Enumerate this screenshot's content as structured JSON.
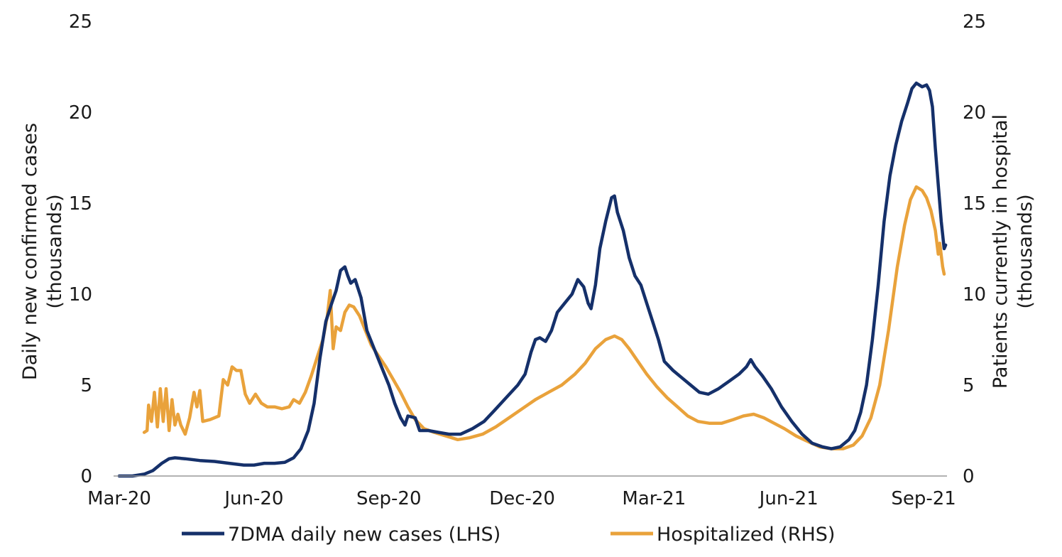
{
  "chart_data": {
    "type": "line",
    "title": "",
    "x_ticks": [
      "Mar-20",
      "Jun-20",
      "Sep-20",
      "Dec-20",
      "Mar-21",
      "Jun-21",
      "Sep-21"
    ],
    "xlim": [
      "2020-03-01",
      "2021-09-15"
    ],
    "left_axis": {
      "label_line1": "Daily new confirmed cases",
      "label_line2": "(thousands)",
      "ylim": [
        0,
        25
      ],
      "ticks": [
        "0",
        "5",
        "10",
        "15",
        "20",
        "25"
      ]
    },
    "right_axis": {
      "label_line1": "Patients currently in hospital",
      "label_line2": "(thousands)",
      "ylim": [
        0,
        25
      ],
      "ticks": [
        "0",
        "5",
        "10",
        "15",
        "20",
        "25"
      ]
    },
    "grid": false,
    "legend_position": "bottom",
    "series": [
      {
        "name": "7DMA daily new cases (LHS)",
        "axis": "left",
        "color": "#15306a",
        "points": [
          [
            "2020-03-01",
            0.0
          ],
          [
            "2020-03-10",
            0.0
          ],
          [
            "2020-03-18",
            0.1
          ],
          [
            "2020-03-24",
            0.3
          ],
          [
            "2020-03-30",
            0.7
          ],
          [
            "2020-04-04",
            0.95
          ],
          [
            "2020-04-08",
            1.0
          ],
          [
            "2020-04-15",
            0.95
          ],
          [
            "2020-04-25",
            0.85
          ],
          [
            "2020-05-05",
            0.8
          ],
          [
            "2020-05-15",
            0.7
          ],
          [
            "2020-05-25",
            0.6
          ],
          [
            "2020-06-01",
            0.6
          ],
          [
            "2020-06-08",
            0.7
          ],
          [
            "2020-06-15",
            0.7
          ],
          [
            "2020-06-22",
            0.75
          ],
          [
            "2020-06-28",
            1.0
          ],
          [
            "2020-07-03",
            1.5
          ],
          [
            "2020-07-08",
            2.5
          ],
          [
            "2020-07-12",
            4.0
          ],
          [
            "2020-07-16",
            6.5
          ],
          [
            "2020-07-20",
            8.5
          ],
          [
            "2020-07-24",
            9.5
          ],
          [
            "2020-07-27",
            10.2
          ],
          [
            "2020-07-30",
            11.3
          ],
          [
            "2020-08-02",
            11.5
          ],
          [
            "2020-08-04",
            11.0
          ],
          [
            "2020-08-06",
            10.6
          ],
          [
            "2020-08-09",
            10.8
          ],
          [
            "2020-08-13",
            9.8
          ],
          [
            "2020-08-17",
            8.0
          ],
          [
            "2020-08-22",
            7.0
          ],
          [
            "2020-08-27",
            6.0
          ],
          [
            "2020-09-01",
            5.0
          ],
          [
            "2020-09-05",
            4.0
          ],
          [
            "2020-09-09",
            3.2
          ],
          [
            "2020-09-12",
            2.8
          ],
          [
            "2020-09-14",
            3.3
          ],
          [
            "2020-09-19",
            3.2
          ],
          [
            "2020-09-22",
            2.5
          ],
          [
            "2020-09-28",
            2.5
          ],
          [
            "2020-10-05",
            2.4
          ],
          [
            "2020-10-12",
            2.3
          ],
          [
            "2020-10-20",
            2.3
          ],
          [
            "2020-10-28",
            2.6
          ],
          [
            "2020-11-05",
            3.0
          ],
          [
            "2020-11-12",
            3.6
          ],
          [
            "2020-11-20",
            4.3
          ],
          [
            "2020-11-28",
            5.0
          ],
          [
            "2020-12-03",
            5.6
          ],
          [
            "2020-12-07",
            6.8
          ],
          [
            "2020-12-10",
            7.5
          ],
          [
            "2020-12-13",
            7.6
          ],
          [
            "2020-12-17",
            7.4
          ],
          [
            "2020-12-21",
            8.0
          ],
          [
            "2020-12-25",
            9.0
          ],
          [
            "2020-12-30",
            9.5
          ],
          [
            "2021-01-04",
            10.0
          ],
          [
            "2021-01-08",
            10.8
          ],
          [
            "2021-01-12",
            10.4
          ],
          [
            "2021-01-15",
            9.5
          ],
          [
            "2021-01-17",
            9.2
          ],
          [
            "2021-01-20",
            10.5
          ],
          [
            "2021-01-23",
            12.5
          ],
          [
            "2021-01-27",
            14.0
          ],
          [
            "2021-01-31",
            15.3
          ],
          [
            "2021-02-02",
            15.4
          ],
          [
            "2021-02-04",
            14.5
          ],
          [
            "2021-02-08",
            13.5
          ],
          [
            "2021-02-12",
            12.0
          ],
          [
            "2021-02-16",
            11.0
          ],
          [
            "2021-02-20",
            10.5
          ],
          [
            "2021-02-24",
            9.5
          ],
          [
            "2021-02-28",
            8.5
          ],
          [
            "2021-03-04",
            7.5
          ],
          [
            "2021-03-08",
            6.3
          ],
          [
            "2021-03-14",
            5.8
          ],
          [
            "2021-03-20",
            5.4
          ],
          [
            "2021-03-26",
            5.0
          ],
          [
            "2021-04-01",
            4.6
          ],
          [
            "2021-04-07",
            4.5
          ],
          [
            "2021-04-14",
            4.8
          ],
          [
            "2021-04-21",
            5.2
          ],
          [
            "2021-04-28",
            5.6
          ],
          [
            "2021-05-03",
            6.0
          ],
          [
            "2021-05-06",
            6.4
          ],
          [
            "2021-05-09",
            6.0
          ],
          [
            "2021-05-14",
            5.5
          ],
          [
            "2021-05-20",
            4.8
          ],
          [
            "2021-05-27",
            3.8
          ],
          [
            "2021-06-03",
            3.0
          ],
          [
            "2021-06-10",
            2.3
          ],
          [
            "2021-06-17",
            1.8
          ],
          [
            "2021-06-24",
            1.6
          ],
          [
            "2021-06-30",
            1.5
          ],
          [
            "2021-07-06",
            1.6
          ],
          [
            "2021-07-12",
            2.0
          ],
          [
            "2021-07-16",
            2.5
          ],
          [
            "2021-07-20",
            3.5
          ],
          [
            "2021-07-24",
            5.0
          ],
          [
            "2021-07-28",
            7.5
          ],
          [
            "2021-08-01",
            10.5
          ],
          [
            "2021-08-05",
            14.0
          ],
          [
            "2021-08-09",
            16.5
          ],
          [
            "2021-08-13",
            18.2
          ],
          [
            "2021-08-17",
            19.5
          ],
          [
            "2021-08-21",
            20.5
          ],
          [
            "2021-08-24",
            21.3
          ],
          [
            "2021-08-27",
            21.6
          ],
          [
            "2021-08-31",
            21.4
          ],
          [
            "2021-09-03",
            21.5
          ],
          [
            "2021-09-05",
            21.2
          ],
          [
            "2021-09-07",
            20.3
          ],
          [
            "2021-09-09",
            18.0
          ],
          [
            "2021-09-11",
            16.0
          ],
          [
            "2021-09-13",
            14.0
          ],
          [
            "2021-09-15",
            12.5
          ],
          [
            "2021-09-16",
            12.7
          ]
        ]
      },
      {
        "name": "Hospitalized (RHS)",
        "axis": "right",
        "color": "#e9a23b",
        "points": [
          [
            "2020-03-18",
            2.4
          ],
          [
            "2020-03-20",
            2.5
          ],
          [
            "2020-03-21",
            3.9
          ],
          [
            "2020-03-23",
            3.0
          ],
          [
            "2020-03-25",
            4.6
          ],
          [
            "2020-03-27",
            2.7
          ],
          [
            "2020-03-29",
            4.8
          ],
          [
            "2020-03-31",
            3.0
          ],
          [
            "2020-04-02",
            4.8
          ],
          [
            "2020-04-04",
            2.5
          ],
          [
            "2020-04-06",
            4.2
          ],
          [
            "2020-04-08",
            2.8
          ],
          [
            "2020-04-10",
            3.4
          ],
          [
            "2020-04-12",
            2.8
          ],
          [
            "2020-04-15",
            2.3
          ],
          [
            "2020-04-18",
            3.2
          ],
          [
            "2020-04-21",
            4.6
          ],
          [
            "2020-04-23",
            3.8
          ],
          [
            "2020-04-25",
            4.7
          ],
          [
            "2020-04-27",
            3.0
          ],
          [
            "2020-05-02",
            3.1
          ],
          [
            "2020-05-08",
            3.3
          ],
          [
            "2020-05-11",
            5.3
          ],
          [
            "2020-05-14",
            5.0
          ],
          [
            "2020-05-17",
            6.0
          ],
          [
            "2020-05-20",
            5.8
          ],
          [
            "2020-05-23",
            5.8
          ],
          [
            "2020-05-26",
            4.5
          ],
          [
            "2020-05-29",
            4.0
          ],
          [
            "2020-06-02",
            4.5
          ],
          [
            "2020-06-06",
            4.0
          ],
          [
            "2020-06-10",
            3.8
          ],
          [
            "2020-06-15",
            3.8
          ],
          [
            "2020-06-20",
            3.7
          ],
          [
            "2020-06-25",
            3.8
          ],
          [
            "2020-06-28",
            4.2
          ],
          [
            "2020-07-02",
            4.0
          ],
          [
            "2020-07-06",
            4.6
          ],
          [
            "2020-07-10",
            5.5
          ],
          [
            "2020-07-14",
            6.5
          ],
          [
            "2020-07-18",
            7.5
          ],
          [
            "2020-07-21",
            8.8
          ],
          [
            "2020-07-23",
            10.2
          ],
          [
            "2020-07-25",
            7.0
          ],
          [
            "2020-07-27",
            8.2
          ],
          [
            "2020-07-30",
            8.0
          ],
          [
            "2020-08-02",
            9.0
          ],
          [
            "2020-08-05",
            9.4
          ],
          [
            "2020-08-08",
            9.3
          ],
          [
            "2020-08-12",
            8.8
          ],
          [
            "2020-08-16",
            8.0
          ],
          [
            "2020-08-20",
            7.2
          ],
          [
            "2020-08-25",
            6.6
          ],
          [
            "2020-08-30",
            6.0
          ],
          [
            "2020-09-04",
            5.3
          ],
          [
            "2020-09-09",
            4.6
          ],
          [
            "2020-09-14",
            3.8
          ],
          [
            "2020-09-19",
            3.1
          ],
          [
            "2020-09-25",
            2.6
          ],
          [
            "2020-10-02",
            2.4
          ],
          [
            "2020-10-10",
            2.2
          ],
          [
            "2020-10-18",
            2.0
          ],
          [
            "2020-10-26",
            2.1
          ],
          [
            "2020-11-04",
            2.3
          ],
          [
            "2020-11-13",
            2.7
          ],
          [
            "2020-11-22",
            3.2
          ],
          [
            "2020-12-01",
            3.7
          ],
          [
            "2020-12-10",
            4.2
          ],
          [
            "2020-12-19",
            4.6
          ],
          [
            "2020-12-28",
            5.0
          ],
          [
            "2021-01-06",
            5.6
          ],
          [
            "2021-01-13",
            6.2
          ],
          [
            "2021-01-20",
            7.0
          ],
          [
            "2021-01-27",
            7.5
          ],
          [
            "2021-02-02",
            7.7
          ],
          [
            "2021-02-07",
            7.5
          ],
          [
            "2021-02-12",
            7.0
          ],
          [
            "2021-02-18",
            6.3
          ],
          [
            "2021-02-24",
            5.6
          ],
          [
            "2021-03-03",
            4.9
          ],
          [
            "2021-03-10",
            4.3
          ],
          [
            "2021-03-17",
            3.8
          ],
          [
            "2021-03-24",
            3.3
          ],
          [
            "2021-03-31",
            3.0
          ],
          [
            "2021-04-08",
            2.9
          ],
          [
            "2021-04-16",
            2.9
          ],
          [
            "2021-04-24",
            3.1
          ],
          [
            "2021-05-01",
            3.3
          ],
          [
            "2021-05-08",
            3.4
          ],
          [
            "2021-05-15",
            3.2
          ],
          [
            "2021-05-22",
            2.9
          ],
          [
            "2021-05-29",
            2.6
          ],
          [
            "2021-06-06",
            2.2
          ],
          [
            "2021-06-14",
            1.9
          ],
          [
            "2021-06-22",
            1.6
          ],
          [
            "2021-06-30",
            1.5
          ],
          [
            "2021-07-08",
            1.5
          ],
          [
            "2021-07-15",
            1.7
          ],
          [
            "2021-07-21",
            2.2
          ],
          [
            "2021-07-27",
            3.2
          ],
          [
            "2021-08-02",
            5.0
          ],
          [
            "2021-08-08",
            8.0
          ],
          [
            "2021-08-14",
            11.5
          ],
          [
            "2021-08-19",
            13.8
          ],
          [
            "2021-08-23",
            15.2
          ],
          [
            "2021-08-27",
            15.9
          ],
          [
            "2021-08-31",
            15.7
          ],
          [
            "2021-09-03",
            15.3
          ],
          [
            "2021-09-06",
            14.6
          ],
          [
            "2021-09-09",
            13.5
          ],
          [
            "2021-09-11",
            12.2
          ],
          [
            "2021-09-12",
            12.8
          ],
          [
            "2021-09-14",
            11.5
          ],
          [
            "2021-09-15",
            11.1
          ]
        ]
      }
    ]
  }
}
